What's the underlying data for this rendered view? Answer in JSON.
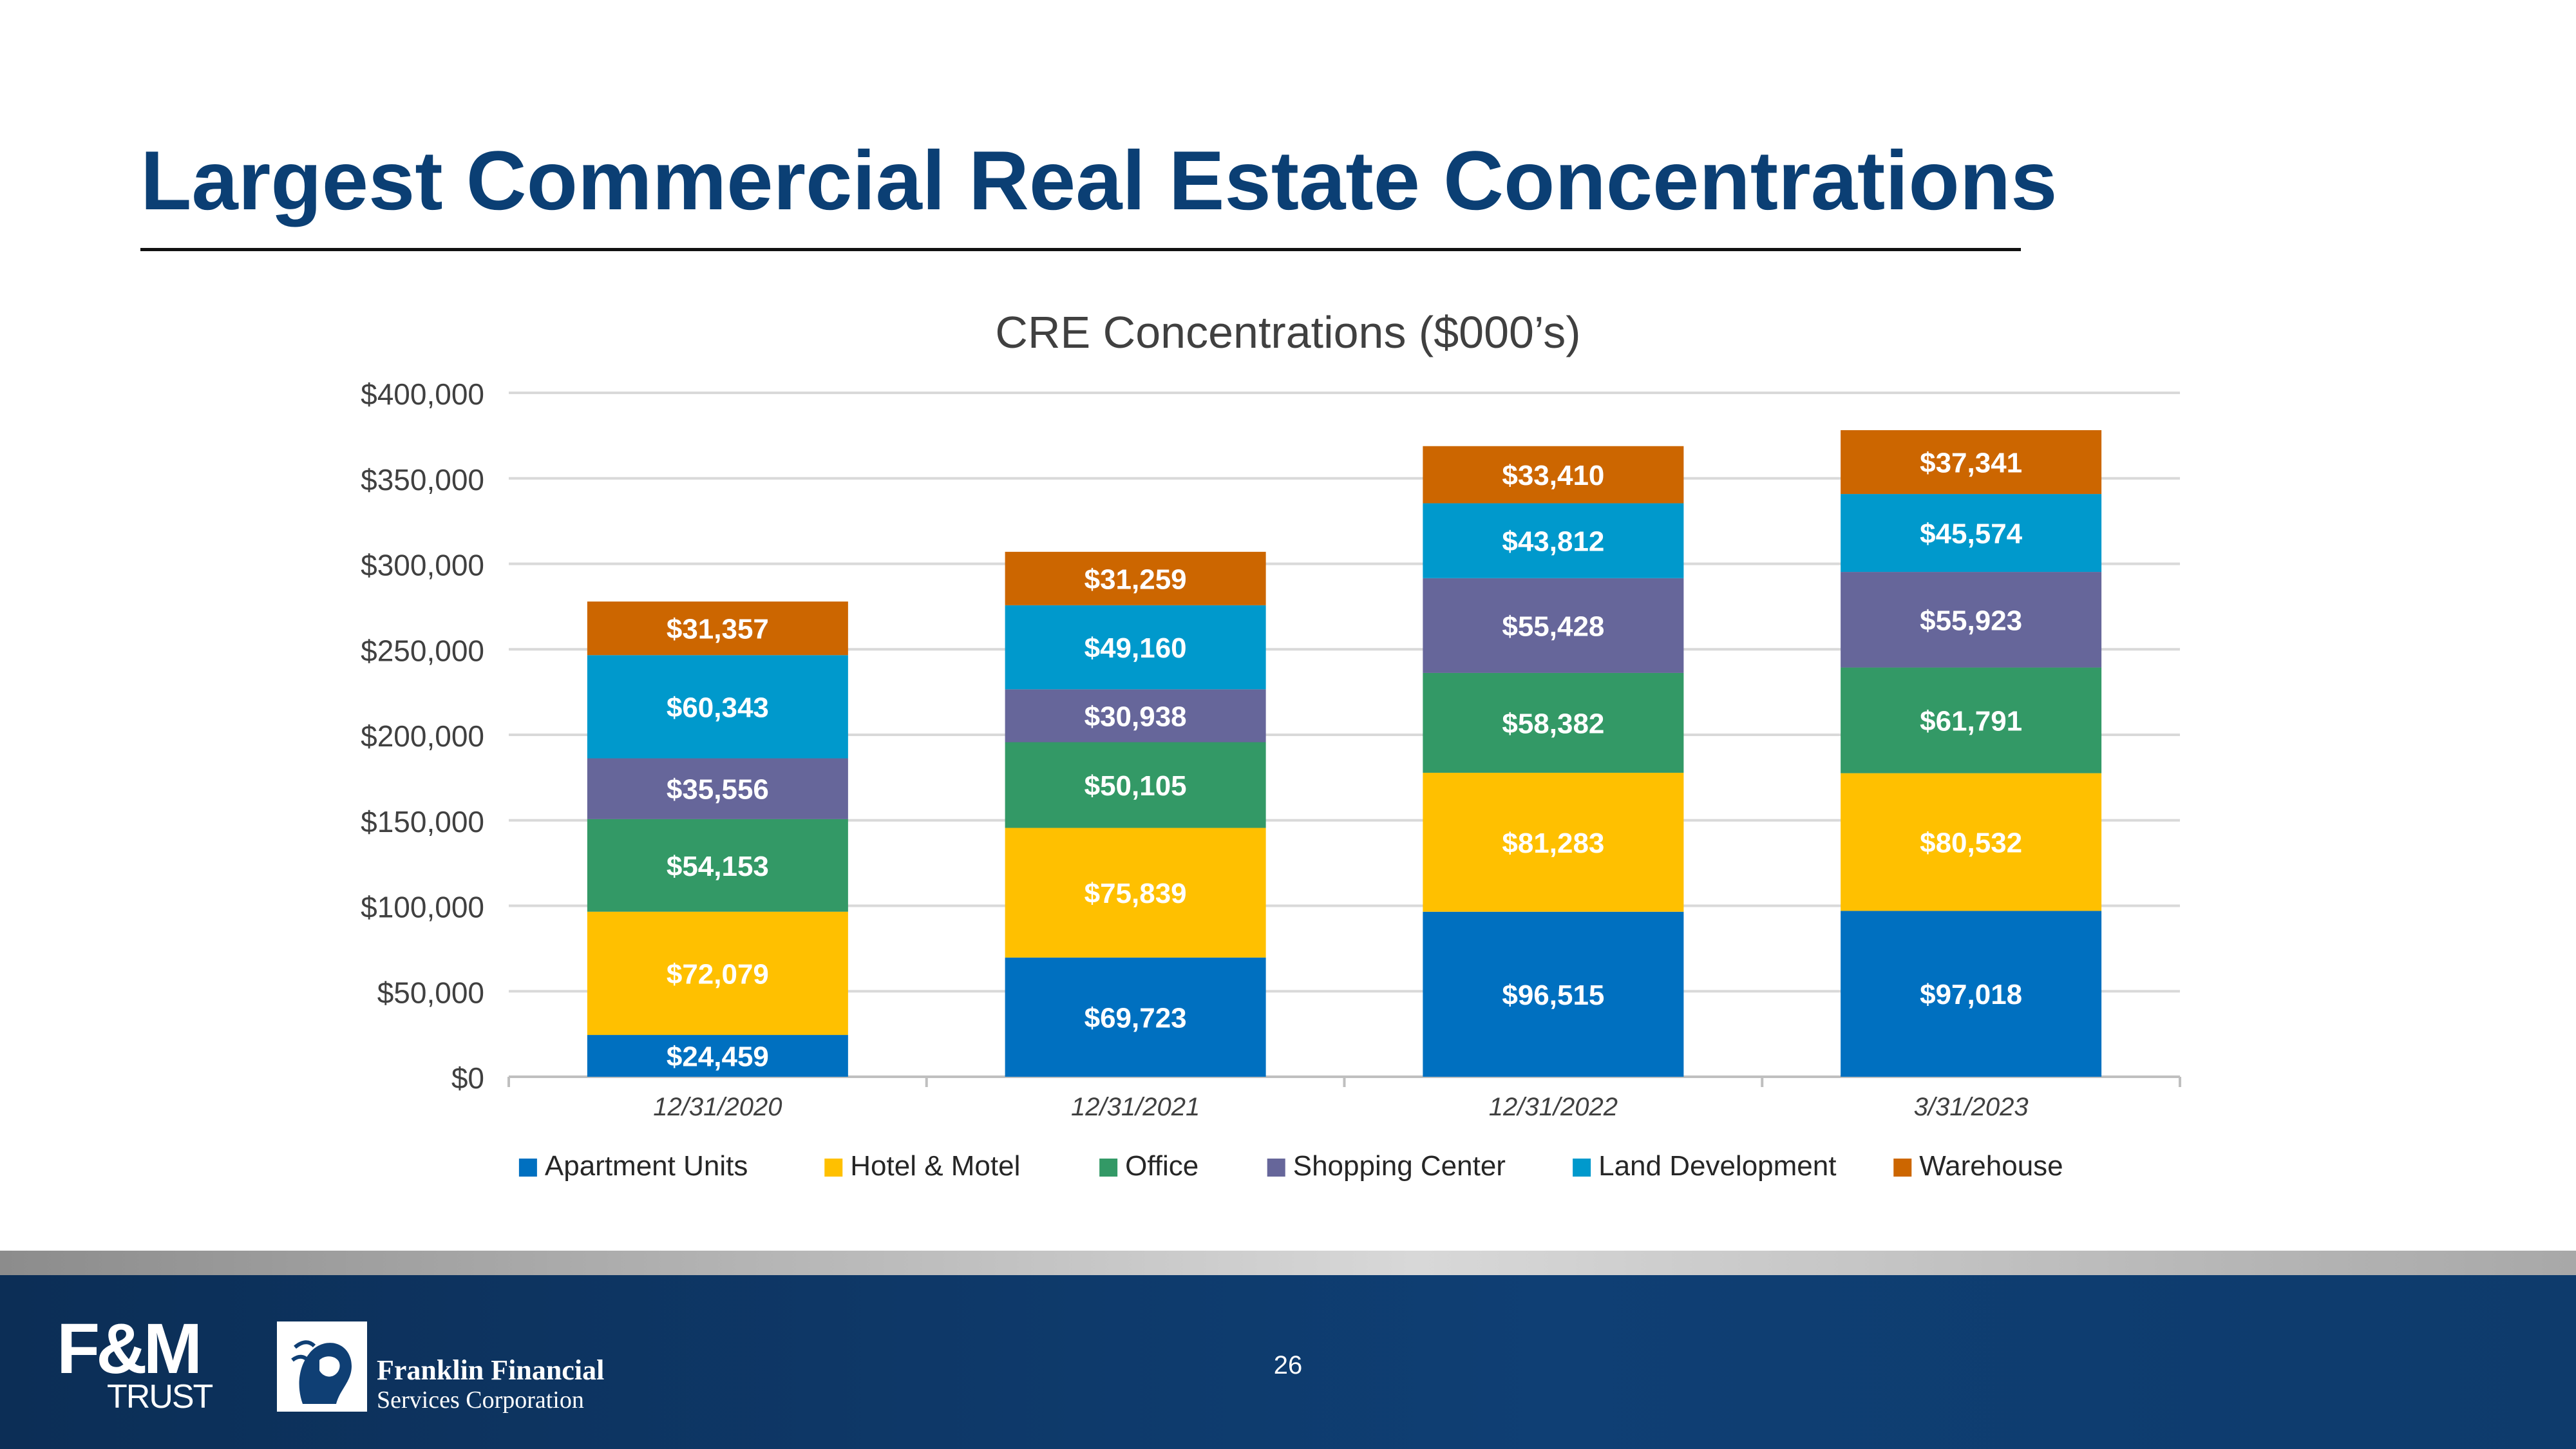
{
  "slide": {
    "title": "Largest Commercial Real Estate Concentrations",
    "page_number": "26"
  },
  "branding": {
    "fm_logo_top": "F&M",
    "fm_logo_bottom": "TRUST",
    "franklin_name": "Franklin Financial",
    "franklin_sub": "Services Corporation"
  },
  "colors": {
    "title": "#0b3f74",
    "apartment": "#0070c0",
    "hotel": "#ffc000",
    "office": "#339966",
    "shopping": "#66669a",
    "land": "#0099cc",
    "warehouse": "#cc6600",
    "grid": "#d9d9d9",
    "axis_text": "#404040"
  },
  "chart_data": {
    "type": "bar",
    "stacked": true,
    "title": "CRE Concentrations ($000’s)",
    "xlabel": "",
    "ylabel": "",
    "ylim": [
      0,
      400000
    ],
    "ytick_step": 50000,
    "yticks": [
      "$0",
      "$50,000",
      "$100,000",
      "$150,000",
      "$200,000",
      "$250,000",
      "$300,000",
      "$350,000",
      "$400,000"
    ],
    "grid": true,
    "legend_position": "bottom",
    "categories": [
      "12/31/2020",
      "12/31/2021",
      "12/31/2022",
      "3/31/2023"
    ],
    "series": [
      {
        "name": "Apartment Units",
        "color": "#0070c0",
        "values": [
          24459,
          69723,
          96515,
          97018
        ],
        "labels": [
          "$24,459",
          "$69,723",
          "$96,515",
          "$97,018"
        ]
      },
      {
        "name": "Hotel & Motel",
        "color": "#ffc000",
        "values": [
          72079,
          75839,
          81283,
          80532
        ],
        "labels": [
          "$72,079",
          "$75,839",
          "$81,283",
          "$80,532"
        ]
      },
      {
        "name": "Office",
        "color": "#339966",
        "values": [
          54153,
          50105,
          58382,
          61791
        ],
        "labels": [
          "$54,153",
          "$50,105",
          "$58,382",
          "$61,791"
        ]
      },
      {
        "name": "Shopping Center",
        "color": "#66669a",
        "values": [
          35556,
          30938,
          55428,
          55923
        ],
        "labels": [
          "$35,556",
          "$30,938",
          "$55,428",
          "$55,923"
        ]
      },
      {
        "name": "Land Development",
        "color": "#0099cc",
        "values": [
          60343,
          49160,
          43812,
          45574
        ],
        "labels": [
          "$60,343",
          "$49,160",
          "$43,812",
          "$45,574"
        ]
      },
      {
        "name": "Warehouse",
        "color": "#cc6600",
        "values": [
          31357,
          31259,
          33410,
          37341
        ],
        "labels": [
          "$31,357",
          "$31,259",
          "$33,410",
          "$37,341"
        ]
      }
    ]
  }
}
